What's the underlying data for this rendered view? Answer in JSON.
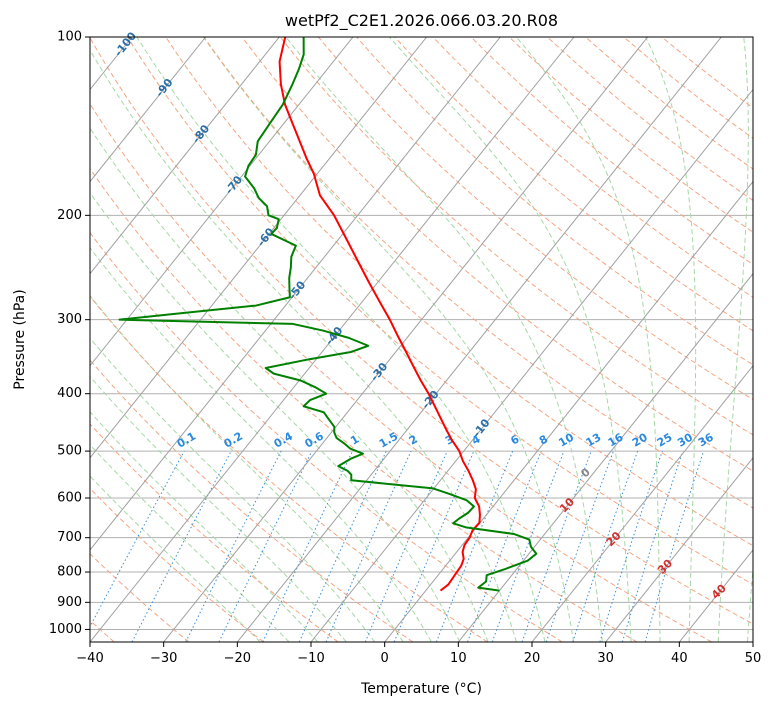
{
  "chart_data": {
    "type": "line",
    "title": "wetPf2_C2E1.2026.066.03.20.R08",
    "xlabel": "Temperature (°C)",
    "ylabel": "Pressure (hPa)",
    "xlim": [
      -40,
      50
    ],
    "ylim": [
      1050,
      100
    ],
    "y_scale": "log",
    "grid": true,
    "x_ticks": [
      "−40",
      "−30",
      "−20",
      "−10",
      "0",
      "10",
      "20",
      "30",
      "40",
      "50"
    ],
    "y_ticks": [
      {
        "p": 100,
        "label": "100"
      },
      {
        "p": 200,
        "label": "200"
      },
      {
        "p": 300,
        "label": "300"
      },
      {
        "p": 400,
        "label": "400"
      },
      {
        "p": 500,
        "label": "500"
      },
      {
        "p": 600,
        "label": "600"
      },
      {
        "p": 700,
        "label": "700"
      },
      {
        "p": 800,
        "label": "800"
      },
      {
        "p": 900,
        "label": "900"
      },
      {
        "p": 1000,
        "label": "1000"
      }
    ],
    "colors": {
      "temperature": "#ff0000",
      "dewpoint": "#008000",
      "isotherm": "#a0a0a0",
      "dry_adiabat": "#f4a582",
      "moist_adiabat": "#a6d8a6",
      "mixing_ratio": "#3a8fd8",
      "isotherm_label": "#2a6fa8",
      "dry_label": "#d03030",
      "mixing_label": "#2a8ae0",
      "zero_label": "#888888"
    },
    "series": [
      {
        "values": [
          [
            2.0,
            860
          ],
          [
            2.4,
            840
          ],
          [
            2.3,
            820
          ],
          [
            2.2,
            800
          ],
          [
            2.1,
            780
          ],
          [
            1.7,
            760
          ],
          [
            0.8,
            740
          ],
          [
            0.3,
            720
          ],
          [
            0.2,
            700
          ],
          [
            -0.2,
            680
          ],
          [
            -0.1,
            660
          ],
          [
            -0.9,
            640
          ],
          [
            -1.9,
            620
          ],
          [
            -3.4,
            600
          ],
          [
            -4.2,
            580
          ],
          [
            -5.6,
            560
          ],
          [
            -7.2,
            540
          ],
          [
            -9.0,
            520
          ],
          [
            -10.6,
            500
          ],
          [
            -12.7,
            480
          ],
          [
            -14.7,
            460
          ],
          [
            -16.7,
            440
          ],
          [
            -18.8,
            420
          ],
          [
            -21.0,
            400
          ],
          [
            -23.5,
            380
          ],
          [
            -26.0,
            360
          ],
          [
            -28.6,
            340
          ],
          [
            -31.4,
            320
          ],
          [
            -34.3,
            300
          ],
          [
            -37.6,
            280
          ],
          [
            -41.1,
            260
          ],
          [
            -44.8,
            240
          ],
          [
            -48.8,
            220
          ],
          [
            -53.2,
            200
          ],
          [
            -57.3,
            185
          ],
          [
            -60.5,
            170
          ],
          [
            -63.2,
            160
          ],
          [
            -65.9,
            150
          ],
          [
            -68.8,
            140
          ],
          [
            -71.9,
            130
          ],
          [
            -74.7,
            120
          ],
          [
            -77.3,
            110
          ],
          [
            -79.2,
            100
          ]
        ]
      },
      {
        "values": [
          [
            10,
            860
          ],
          [
            6.8,
            850
          ],
          [
            7.2,
            830
          ],
          [
            6.6,
            810
          ],
          [
            8.5,
            790
          ],
          [
            10.6,
            765
          ],
          [
            11.0,
            745
          ],
          [
            9.5,
            725
          ],
          [
            8.5,
            705
          ],
          [
            5.8,
            690
          ],
          [
            -1.3,
            673
          ],
          [
            -3.6,
            662
          ],
          [
            -3.3,
            650
          ],
          [
            -2.7,
            635
          ],
          [
            -2.6,
            620
          ],
          [
            -4.3,
            605
          ],
          [
            -7.4,
            590
          ],
          [
            -10.1,
            578
          ],
          [
            -22.1,
            560
          ],
          [
            -22.7,
            548
          ],
          [
            -23.6,
            540
          ],
          [
            -25.4,
            530
          ],
          [
            -24.5,
            515
          ],
          [
            -23.4,
            505
          ],
          [
            -25.7,
            495
          ],
          [
            -27.1,
            485
          ],
          [
            -28.7,
            475
          ],
          [
            -29.6,
            465
          ],
          [
            -30.2,
            455
          ],
          [
            -32.0,
            440
          ],
          [
            -33.2,
            430
          ],
          [
            -36.6,
            420
          ],
          [
            -36.4,
            410
          ],
          [
            -34.9,
            400
          ],
          [
            -37.1,
            390
          ],
          [
            -39.8,
            380
          ],
          [
            -44.2,
            370
          ],
          [
            -45.9,
            362
          ],
          [
            -41.0,
            350
          ],
          [
            -36.0,
            340
          ],
          [
            -34.4,
            332
          ],
          [
            -37.9,
            322
          ],
          [
            -42.2,
            313
          ],
          [
            -47.0,
            305
          ],
          [
            -71.0,
            300
          ],
          [
            -64.9,
            294
          ],
          [
            -54.0,
            284
          ],
          [
            -50.3,
            275
          ],
          [
            -51.4,
            265
          ],
          [
            -52.5,
            255
          ],
          [
            -53.4,
            245
          ],
          [
            -54.5,
            235
          ],
          [
            -55.1,
            225
          ],
          [
            -59.7,
            215
          ],
          [
            -59.6,
            210
          ],
          [
            -60.3,
            203
          ],
          [
            -62.1,
            200
          ],
          [
            -63.3,
            193
          ],
          [
            -65.3,
            187
          ],
          [
            -67.0,
            180
          ],
          [
            -69.5,
            172
          ],
          [
            -70.2,
            165
          ],
          [
            -70.4,
            158
          ],
          [
            -71.6,
            150
          ],
          [
            -71.9,
            140
          ],
          [
            -72.2,
            130
          ],
          [
            -73.1,
            120
          ],
          [
            -73.9,
            113
          ],
          [
            -74.8,
            107
          ],
          [
            -76.7,
            100
          ]
        ]
      }
    ],
    "isotherm_labels": [
      "-100",
      "-90",
      "-80",
      "-70",
      "-60",
      "-50",
      "-40",
      "-30",
      "-20",
      "-10"
    ],
    "mixing_ratio_labels": [
      "0.1",
      "0.2",
      "0.4",
      "0.6",
      "1",
      "1.5",
      "2",
      "3",
      "4",
      "6",
      "8",
      "10",
      "13",
      "16",
      "20",
      "25",
      "30",
      "36"
    ],
    "dry_adiabat_labels": [
      "10",
      "20",
      "30",
      "40"
    ],
    "zero_label": "0"
  }
}
